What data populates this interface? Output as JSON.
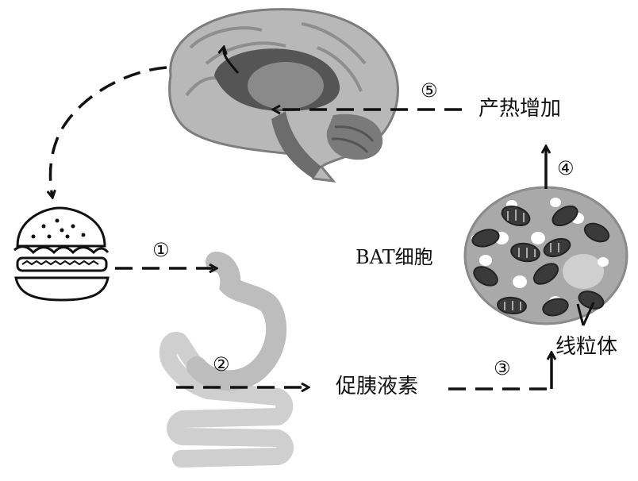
{
  "labels": {
    "heat": "产热增加",
    "bat": "BAT细胞",
    "hormone": "促胰液素",
    "mito": "线粒体"
  },
  "steps": {
    "s1": "①",
    "s2": "②",
    "s3": "③",
    "s4": "④",
    "s5": "⑤"
  },
  "colors": {
    "ink": "#111111",
    "brain_outer": "#b8b8b8",
    "brain_inner": "#6a6a6a",
    "gut": "#c9c9c9",
    "cell": "#a9a9a9",
    "mito": "#3a3a3a"
  }
}
